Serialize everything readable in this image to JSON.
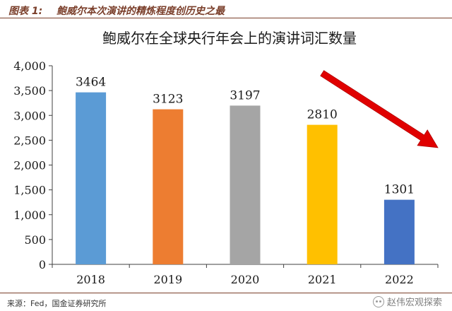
{
  "header": {
    "figure_label": "图表 1:",
    "figure_title": "鲍威尔本次演讲的精炼程度创历史之最"
  },
  "chart_data": {
    "type": "bar",
    "title": "鲍威尔在全球央行年会上的演讲词汇数量",
    "categories": [
      "2018",
      "2019",
      "2020",
      "2021",
      "2022"
    ],
    "values": [
      3464,
      3123,
      3197,
      2810,
      1301
    ],
    "data_labels": [
      "3464",
      "3123",
      "3197",
      "2810",
      "1301"
    ],
    "colors": [
      "#5b9bd5",
      "#ed7d31",
      "#a5a5a5",
      "#ffc000",
      "#4472c4"
    ],
    "ylim": [
      0,
      4000
    ],
    "yticks": [
      0,
      500,
      1000,
      1500,
      2000,
      2500,
      3000,
      3500,
      4000
    ],
    "ytick_labels": [
      "0",
      "500",
      "1,000",
      "1,500",
      "2,000",
      "2,500",
      "3,000",
      "3,500",
      "4,000"
    ],
    "xlabel": "",
    "ylabel": "",
    "grid": false,
    "annotation": {
      "type": "arrow",
      "color": "#e00000",
      "from": {
        "category_index": 3.0,
        "value": 3850
      },
      "to": {
        "category_index": 4.5,
        "value": 2350
      }
    }
  },
  "footer": {
    "source": "来源：Fed，国金证券研究所",
    "watermark": "赵伟宏观探索",
    "watermark_icon": "wechat-icon"
  }
}
